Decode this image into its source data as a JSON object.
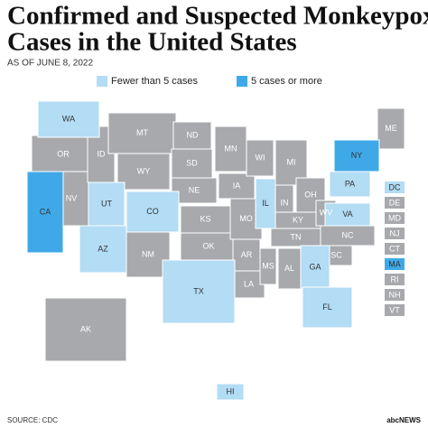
{
  "title": [
    "Confirmed and Suspected Monkeypox",
    "Cases in the United States"
  ],
  "subtitle": "AS OF JUNE 8, 2022",
  "legend": [
    {
      "label": "Fewer than 5 cases",
      "color": "#b3dcf5"
    },
    {
      "label": "5 cases or more",
      "color": "#3fa9e8"
    }
  ],
  "states": [
    {
      "label": "WA",
      "color": "#b3dcf5",
      "text_color": "#333"
    },
    {
      "label": "OR",
      "color": "#a7a9ac",
      "text_color": "#fff"
    },
    {
      "label": "CA",
      "color": "#3fa9e8",
      "text_color": "#333"
    },
    {
      "label": "NV",
      "color": "#a7a9ac",
      "text_color": "#fff"
    },
    {
      "label": "ID",
      "color": "#a7a9ac",
      "text_color": "#fff"
    },
    {
      "label": "MT",
      "color": "#a7a9ac",
      "text_color": "#fff"
    },
    {
      "label": "WY",
      "color": "#a7a9ac",
      "text_color": "#fff"
    },
    {
      "label": "UT",
      "color": "#b3dcf5",
      "text_color": "#333"
    },
    {
      "label": "CO",
      "color": "#b3dcf5",
      "text_color": "#333"
    },
    {
      "label": "AZ",
      "color": "#b3dcf5",
      "text_color": "#333"
    },
    {
      "label": "NM",
      "color": "#a7a9ac",
      "text_color": "#fff"
    },
    {
      "label": "ND",
      "color": "#a7a9ac",
      "text_color": "#fff"
    },
    {
      "label": "SD",
      "color": "#a7a9ac",
      "text_color": "#fff"
    },
    {
      "label": "NE",
      "color": "#a7a9ac",
      "text_color": "#fff"
    },
    {
      "label": "KS",
      "color": "#a7a9ac",
      "text_color": "#fff"
    },
    {
      "label": "OK",
      "color": "#a7a9ac",
      "text_color": "#fff"
    },
    {
      "label": "TX",
      "color": "#b3dcf5",
      "text_color": "#333"
    },
    {
      "label": "MN",
      "color": "#a7a9ac",
      "text_color": "#fff"
    },
    {
      "label": "IA",
      "color": "#a7a9ac",
      "text_color": "#fff"
    },
    {
      "label": "MO",
      "color": "#a7a9ac",
      "text_color": "#fff"
    },
    {
      "label": "AR",
      "color": "#a7a9ac",
      "text_color": "#fff"
    },
    {
      "label": "LA",
      "color": "#a7a9ac",
      "text_color": "#fff"
    },
    {
      "label": "WI",
      "color": "#a7a9ac",
      "text_color": "#fff"
    },
    {
      "label": "IL",
      "color": "#b3dcf5",
      "text_color": "#333"
    },
    {
      "label": "MS",
      "color": "#a7a9ac",
      "text_color": "#fff"
    },
    {
      "label": "MI",
      "color": "#a7a9ac",
      "text_color": "#fff"
    },
    {
      "label": "IN",
      "color": "#a7a9ac",
      "text_color": "#fff"
    },
    {
      "label": "KY",
      "color": "#a7a9ac",
      "text_color": "#fff"
    },
    {
      "label": "TN",
      "color": "#a7a9ac",
      "text_color": "#fff"
    },
    {
      "label": "AL",
      "color": "#a7a9ac",
      "text_color": "#fff"
    },
    {
      "label": "GA",
      "color": "#b3dcf5",
      "text_color": "#333"
    },
    {
      "label": "FL",
      "color": "#b3dcf5",
      "text_color": "#333"
    },
    {
      "label": "OH",
      "color": "#a7a9ac",
      "text_color": "#fff"
    },
    {
      "label": "WV",
      "color": "#a7a9ac",
      "text_color": "#fff"
    },
    {
      "label": "VA",
      "color": "#b3dcf5",
      "text_color": "#333"
    },
    {
      "label": "NC",
      "color": "#a7a9ac",
      "text_color": "#fff"
    },
    {
      "label": "SC",
      "color": "#a7a9ac",
      "text_color": "#fff"
    },
    {
      "label": "PA",
      "color": "#b3dcf5",
      "text_color": "#333"
    },
    {
      "label": "NY",
      "color": "#3fa9e8",
      "text_color": "#333"
    },
    {
      "label": "ME",
      "color": "#a7a9ac",
      "text_color": "#fff"
    },
    {
      "label": "AK",
      "color": "#a7a9ac",
      "text_color": "#fff"
    },
    {
      "label": "HI",
      "color": "#b3dcf5",
      "text_color": "#333"
    }
  ],
  "small_states": [
    {
      "label": "DC",
      "color": "#b3dcf5",
      "text_color": "#333"
    },
    {
      "label": "DE",
      "color": "#a7a9ac",
      "text_color": "#fff"
    },
    {
      "label": "MD",
      "color": "#a7a9ac",
      "text_color": "#fff"
    },
    {
      "label": "NJ",
      "color": "#a7a9ac",
      "text_color": "#fff"
    },
    {
      "label": "CT",
      "color": "#a7a9ac",
      "text_color": "#fff"
    },
    {
      "label": "MA",
      "color": "#3fa9e8",
      "text_color": "#333"
    },
    {
      "label": "RI",
      "color": "#a7a9ac",
      "text_color": "#fff"
    },
    {
      "label": "NH",
      "color": "#a7a9ac",
      "text_color": "#fff"
    },
    {
      "label": "VT",
      "color": "#a7a9ac",
      "text_color": "#fff"
    }
  ],
  "source": "SOURCE: CDC",
  "logo": "abcNEWS"
}
